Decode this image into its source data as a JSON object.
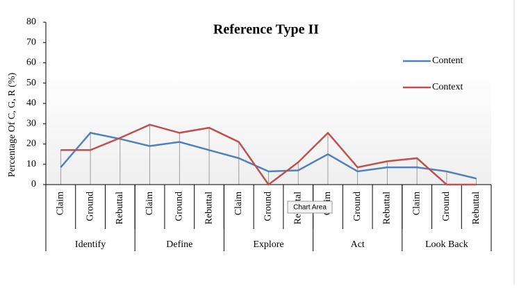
{
  "chart_data": {
    "type": "line",
    "title": "Reference Type II",
    "y_label": "Percentage Of C, G, R (%)",
    "categories": [
      "Claim",
      "Ground",
      "Rebuttal",
      "Claim",
      "Ground",
      "Rebuttal",
      "Claim",
      "Ground",
      "Rebuttal",
      "Claim",
      "Ground",
      "Rebuttal",
      "Claim",
      "Ground",
      "Rebuttal"
    ],
    "groups": [
      "Identify",
      "Define",
      "Explore",
      "Act",
      "Look Back"
    ],
    "series": [
      {
        "name": "Content",
        "color": "#4f81bd",
        "values": [
          8.5,
          25.5,
          22.5,
          19,
          21,
          17,
          13,
          6.5,
          7,
          15,
          6.5,
          8.5,
          8.5,
          6.5,
          3
        ]
      },
      {
        "name": "Context",
        "color": "#c0504d",
        "values": [
          17,
          17,
          23,
          29.5,
          25.5,
          28,
          21,
          0,
          11,
          25.5,
          8.5,
          11.5,
          13,
          0,
          0
        ]
      }
    ],
    "ylim": [
      0,
      80
    ],
    "yticks": [
      0,
      10,
      20,
      30,
      40,
      50,
      60,
      70,
      80
    ],
    "drop_lines": true,
    "legend": "top-right"
  },
  "tooltip": "Chart Area"
}
